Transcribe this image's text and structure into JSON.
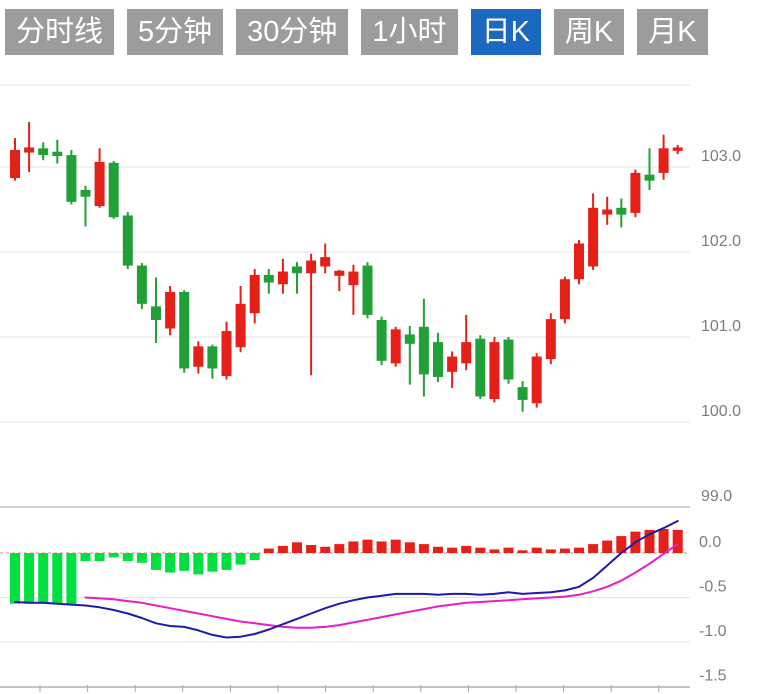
{
  "toolbar": {
    "buttons": [
      {
        "label": "分时线",
        "active": false
      },
      {
        "label": "5分钟",
        "active": false
      },
      {
        "label": "30分钟",
        "active": false
      },
      {
        "label": "1小时",
        "active": false
      },
      {
        "label": "日K",
        "active": true
      },
      {
        "label": "周K",
        "active": false
      },
      {
        "label": "月K",
        "active": false
      }
    ],
    "active_color": "#1a68bf",
    "inactive_color": "#9c9c9c"
  },
  "chart_data": {
    "type": "candlestick",
    "title": "",
    "legend_position": "none",
    "grid": true,
    "price_axis": {
      "side": "right",
      "ticks": [
        {
          "text": "103.0",
          "value": 103.0
        },
        {
          "text": "102.0",
          "value": 102.0
        },
        {
          "text": "101.0",
          "value": 101.0
        },
        {
          "text": "100.0",
          "value": 100.0
        },
        {
          "text": "99.0",
          "value": 99.0
        }
      ]
    },
    "macd_axis": {
      "side": "right",
      "ticks": [
        {
          "text": "0.0",
          "value": 0.0
        },
        {
          "text": "-0.5",
          "value": -0.5
        },
        {
          "text": "-1.0",
          "value": -1.0
        },
        {
          "text": "-1.5",
          "value": -1.5
        }
      ]
    },
    "candles_ohlc": [
      [
        102.87,
        103.34,
        102.84,
        103.2
      ],
      [
        103.17,
        103.53,
        102.94,
        103.23
      ],
      [
        103.22,
        103.29,
        103.08,
        103.14
      ],
      [
        103.18,
        103.32,
        103.04,
        103.13
      ],
      [
        103.14,
        103.2,
        102.56,
        102.59
      ],
      [
        102.73,
        102.78,
        102.3,
        102.65
      ],
      [
        102.54,
        103.22,
        102.52,
        103.06
      ],
      [
        103.05,
        103.07,
        102.39,
        102.41
      ],
      [
        102.43,
        102.47,
        101.8,
        101.84
      ],
      [
        101.84,
        101.87,
        101.33,
        101.39
      ],
      [
        101.36,
        101.7,
        100.93,
        101.2
      ],
      [
        101.1,
        101.6,
        101.02,
        101.53
      ],
      [
        101.53,
        101.55,
        100.58,
        100.63
      ],
      [
        100.65,
        100.95,
        100.57,
        100.89
      ],
      [
        100.89,
        100.91,
        100.51,
        100.63
      ],
      [
        100.54,
        101.18,
        100.5,
        101.07
      ],
      [
        100.88,
        101.6,
        100.82,
        101.39
      ],
      [
        101.28,
        101.8,
        101.16,
        101.73
      ],
      [
        101.73,
        101.8,
        101.51,
        101.64
      ],
      [
        101.62,
        101.92,
        101.51,
        101.77
      ],
      [
        101.83,
        101.88,
        101.51,
        101.75
      ],
      [
        101.75,
        101.98,
        100.55,
        101.9
      ],
      [
        101.83,
        102.1,
        101.75,
        101.94
      ],
      [
        101.72,
        101.79,
        101.54,
        101.78
      ],
      [
        101.61,
        101.85,
        101.26,
        101.77
      ],
      [
        101.84,
        101.88,
        101.22,
        101.26
      ],
      [
        101.2,
        101.24,
        100.67,
        100.72
      ],
      [
        100.69,
        101.12,
        100.65,
        101.09
      ],
      [
        101.03,
        101.13,
        100.44,
        100.92
      ],
      [
        101.12,
        101.45,
        100.3,
        100.56
      ],
      [
        100.94,
        101.05,
        100.47,
        100.53
      ],
      [
        100.59,
        100.83,
        100.4,
        100.77
      ],
      [
        100.69,
        101.26,
        100.61,
        100.94
      ],
      [
        100.98,
        101.02,
        100.27,
        100.3
      ],
      [
        100.27,
        101.0,
        100.23,
        100.94
      ],
      [
        100.97,
        101.0,
        100.45,
        100.5
      ],
      [
        100.41,
        100.48,
        100.12,
        100.26
      ],
      [
        100.22,
        100.81,
        100.17,
        100.77
      ],
      [
        100.74,
        101.28,
        100.68,
        101.21
      ],
      [
        101.21,
        101.71,
        101.16,
        101.68
      ],
      [
        101.68,
        102.14,
        101.62,
        102.1
      ],
      [
        101.83,
        102.69,
        101.79,
        102.52
      ],
      [
        102.44,
        102.65,
        102.32,
        102.5
      ],
      [
        102.52,
        102.63,
        102.29,
        102.44
      ],
      [
        102.46,
        102.97,
        102.41,
        102.93
      ],
      [
        102.91,
        103.22,
        102.73,
        102.84
      ],
      [
        102.93,
        103.38,
        102.85,
        103.22
      ],
      [
        103.19,
        103.26,
        103.15,
        103.23
      ]
    ],
    "macd": {
      "histogram": [
        -0.57,
        -0.57,
        -0.57,
        -0.57,
        -0.57,
        -0.09,
        -0.09,
        -0.05,
        -0.09,
        -0.11,
        -0.19,
        -0.22,
        -0.2,
        -0.24,
        -0.21,
        -0.19,
        -0.13,
        -0.08,
        0.05,
        0.08,
        0.12,
        0.09,
        0.07,
        0.1,
        0.13,
        0.15,
        0.13,
        0.15,
        0.12,
        0.1,
        0.07,
        0.06,
        0.08,
        0.06,
        0.04,
        0.06,
        0.03,
        0.06,
        0.04,
        0.05,
        0.06,
        0.1,
        0.14,
        0.19,
        0.24,
        0.26,
        0.27,
        0.26
      ],
      "dif": [
        -0.55,
        -0.56,
        -0.56,
        -0.57,
        -0.58,
        -0.59,
        -0.61,
        -0.64,
        -0.68,
        -0.73,
        -0.79,
        -0.82,
        -0.83,
        -0.87,
        -0.92,
        -0.95,
        -0.94,
        -0.91,
        -0.86,
        -0.8,
        -0.74,
        -0.68,
        -0.62,
        -0.57,
        -0.53,
        -0.5,
        -0.48,
        -0.46,
        -0.46,
        -0.46,
        -0.47,
        -0.46,
        -0.46,
        -0.47,
        -0.46,
        -0.44,
        -0.46,
        -0.45,
        -0.44,
        -0.42,
        -0.38,
        -0.28,
        -0.14,
        0.0,
        0.12,
        0.21,
        0.28,
        0.36
      ],
      "dea": [
        null,
        null,
        null,
        null,
        null,
        -0.5,
        -0.51,
        -0.52,
        -0.54,
        -0.56,
        -0.59,
        -0.62,
        -0.65,
        -0.68,
        -0.71,
        -0.74,
        -0.77,
        -0.79,
        -0.81,
        -0.83,
        -0.84,
        -0.84,
        -0.83,
        -0.81,
        -0.78,
        -0.75,
        -0.72,
        -0.69,
        -0.66,
        -0.63,
        -0.6,
        -0.58,
        -0.56,
        -0.55,
        -0.54,
        -0.53,
        -0.52,
        -0.51,
        -0.5,
        -0.49,
        -0.47,
        -0.43,
        -0.38,
        -0.31,
        -0.22,
        -0.12,
        -0.01,
        0.1
      ]
    },
    "colors": {
      "candle_up": "#e52019",
      "candle_down": "#21a038",
      "hist_up": "#e52019",
      "hist_down": "#00e040",
      "dif_line": "#1c1ca8",
      "dea_line": "#e81cc8",
      "grid": "#e4e4e4",
      "separator": "#d0d0d0",
      "zero_dashed": "#f08080",
      "axis": "#c4c4c4",
      "label": "#7d7d7d"
    }
  }
}
